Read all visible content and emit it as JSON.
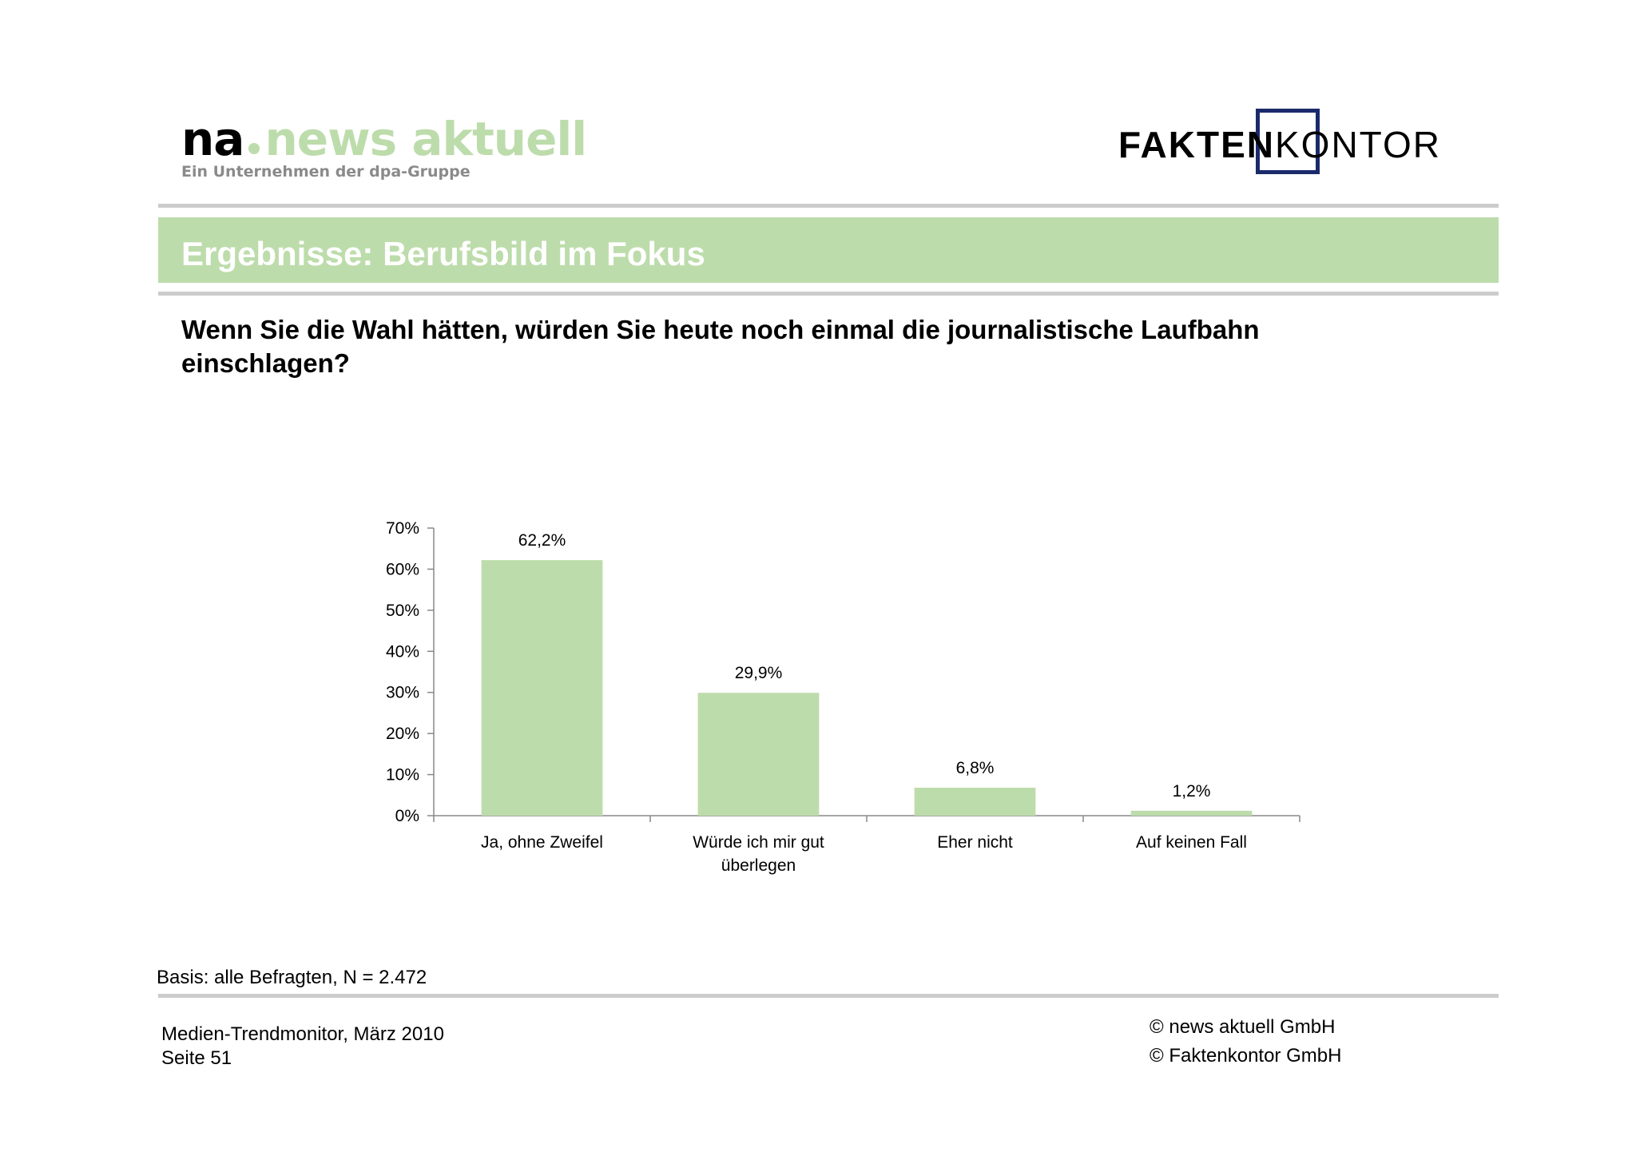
{
  "header": {
    "logo_left": {
      "na": "na",
      "news": "news aktuell",
      "subtitle": "Ein Unternehmen der dpa-Gruppe"
    },
    "logo_right": {
      "bold": "FAKTEN",
      "light": "KONTOR"
    },
    "section_title": "Ergebnisse: Berufsbild im Fokus"
  },
  "question": "Wenn Sie die Wahl hätten, würden Sie heute noch einmal die journalistische Laufbahn einschlagen?",
  "colors": {
    "accent_green": "#bddcab",
    "brand_navy": "#1b2a6b",
    "rule_grey": "#cccccc",
    "axis": "#888888"
  },
  "chart_data": {
    "type": "bar",
    "categories": [
      [
        "Ja, ohne Zweifel"
      ],
      [
        "Würde ich mir gut",
        "überlegen"
      ],
      [
        "Eher nicht"
      ],
      [
        "Auf keinen Fall"
      ]
    ],
    "values": [
      62.2,
      29.9,
      6.8,
      1.2
    ],
    "data_labels": [
      "62,2%",
      "29,9%",
      "6,8%",
      "1,2%"
    ],
    "yticks": [
      0,
      10,
      20,
      30,
      40,
      50,
      60,
      70
    ],
    "ytick_labels": [
      "0%",
      "10%",
      "20%",
      "30%",
      "40%",
      "50%",
      "60%",
      "70%"
    ],
    "ylim": [
      0,
      70
    ],
    "grid": false,
    "legend": "none"
  },
  "footer": {
    "basis": "Basis: alle Befragten, N = 2.472",
    "left_line1": "Medien-Trendmonitor, März 2010",
    "left_line2": "Seite 51",
    "right_line1": "© news aktuell GmbH",
    "right_line2": "© Faktenkontor GmbH"
  }
}
